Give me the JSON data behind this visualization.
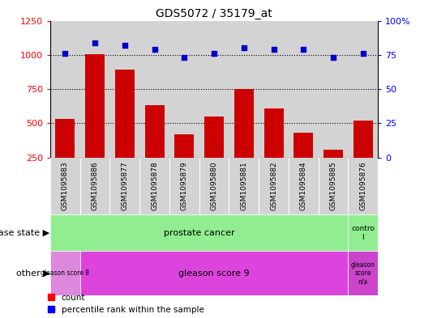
{
  "title": "GDS5072 / 35179_at",
  "samples": [
    "GSM1095883",
    "GSM1095886",
    "GSM1095877",
    "GSM1095878",
    "GSM1095879",
    "GSM1095880",
    "GSM1095881",
    "GSM1095882",
    "GSM1095884",
    "GSM1095885",
    "GSM1095876"
  ],
  "counts": [
    530,
    1005,
    890,
    630,
    420,
    550,
    750,
    610,
    430,
    305,
    520
  ],
  "percentiles": [
    76,
    84,
    82,
    79,
    73,
    76,
    80,
    79,
    79,
    73,
    76
  ],
  "ylim_left": [
    250,
    1250
  ],
  "ylim_right": [
    0,
    100
  ],
  "yticks_left": [
    250,
    500,
    750,
    1000,
    1250
  ],
  "yticks_right": [
    0,
    25,
    50,
    75,
    100
  ],
  "ytick_right_labels": [
    "0",
    "25",
    "50",
    "75",
    "100%"
  ],
  "bar_color": "#cc0000",
  "scatter_color": "#0000cc",
  "panel_bg": "#d3d3d3",
  "grid_dotted_at": [
    500,
    750,
    1000
  ],
  "ds_prostate_color": "#90ee90",
  "ds_control_color": "#90ee90",
  "ot_gs8_color": "#dd88dd",
  "ot_gs9_color": "#dd44dd",
  "ot_gsna_color": "#cc44cc",
  "legend_square_red": "count",
  "legend_square_blue": "percentile rank within the sample"
}
